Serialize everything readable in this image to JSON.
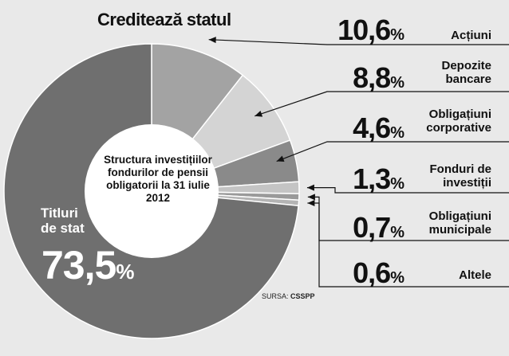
{
  "chart_data": {
    "type": "pie",
    "title": "Creditează statul",
    "center_label": "Structura investițiilor fondurilor de pensii obligatorii la 31 iulie 2012",
    "source_label": "SURSA:",
    "source_name": "CSSPP",
    "unit": "%",
    "slices": [
      {
        "label": "Titluri de stat",
        "display": "Titluri\nde stat",
        "value": 73.5,
        "value_text": "73,5",
        "color": "#6f6f6f"
      },
      {
        "label": "Acțiuni",
        "display": "Acțiuni",
        "value": 10.6,
        "value_text": "10,6",
        "color": "#a3a3a3"
      },
      {
        "label": "Depozite bancare",
        "display": "Depozite\nbancare",
        "value": 8.8,
        "value_text": "8,8",
        "color": "#d4d4d4"
      },
      {
        "label": "Obligațiuni corporative",
        "display": "Obligațiuni\ncorporative",
        "value": 4.6,
        "value_text": "4,6",
        "color": "#8a8a8a"
      },
      {
        "label": "Fonduri de investiții",
        "display": "Fonduri de\ninvestiții",
        "value": 1.3,
        "value_text": "1,3",
        "color": "#c4c4c4"
      },
      {
        "label": "Obligațiuni municipale",
        "display": "Obligațiuni\nmunicipale",
        "value": 0.7,
        "value_text": "0,7",
        "color": "#9a9a9a"
      },
      {
        "label": "Altele",
        "display": "Altele",
        "value": 0.6,
        "value_text": "0,6",
        "color": "#b4b4b4"
      }
    ],
    "colors": {
      "background": "#e9e9e9",
      "center": "#ffffff",
      "separator": "#ffffff",
      "text": "#111111"
    }
  }
}
